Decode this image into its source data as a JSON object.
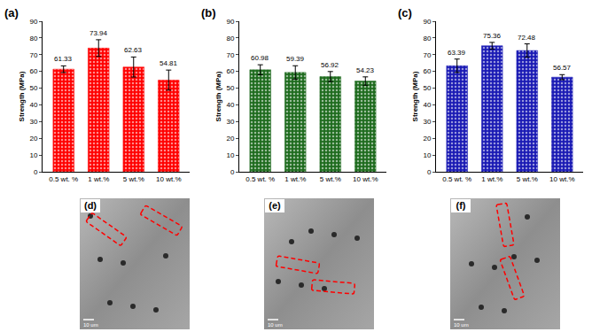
{
  "chart_data": [
    {
      "type": "bar",
      "title": "(a)",
      "ylabel": "Strength (MPa)",
      "categories": [
        "0.5 wt. %",
        "1 wt.%",
        "5 wt.%",
        "10 wt.%"
      ],
      "values": [
        61.33,
        73.94,
        62.63,
        54.81
      ],
      "errors": [
        2,
        5,
        6,
        6
      ],
      "color": "#ff0000",
      "ylim": [
        0,
        90
      ],
      "yticks": [
        0,
        10,
        20,
        30,
        40,
        50,
        60,
        70,
        80,
        90
      ],
      "data_labels": true
    },
    {
      "type": "bar",
      "title": "(b)",
      "ylabel": "Strength (MPa)",
      "categories": [
        "0.5 wt. %",
        "1 wt.%",
        "5 wt.%",
        "10 wt.%"
      ],
      "values": [
        60.98,
        59.39,
        56.92,
        54.23
      ],
      "errors": [
        3,
        4,
        3,
        2.5
      ],
      "color": "#1e6b1e",
      "ylim": [
        0,
        90
      ],
      "yticks": [
        0,
        10,
        20,
        30,
        40,
        50,
        60,
        70,
        80,
        90
      ],
      "data_labels": true
    },
    {
      "type": "bar",
      "title": "(c)",
      "ylabel": "Strength (MPa)",
      "categories": [
        "0.5 wt. %",
        "1 wt.%",
        "5 wt.%",
        "10 wt.%"
      ],
      "values": [
        63.39,
        75.36,
        72.48,
        56.57
      ],
      "errors": [
        4,
        2,
        4,
        1.5
      ],
      "color": "#1a1ab4",
      "ylim": [
        0,
        90
      ],
      "yticks": [
        0,
        10,
        20,
        30,
        40,
        50,
        60,
        70,
        80,
        90
      ],
      "data_labels": true
    }
  ],
  "images": [
    {
      "label": "(d)",
      "scale_bar": "10 um"
    },
    {
      "label": "(e)",
      "scale_bar": "10 um"
    },
    {
      "label": "(f)",
      "scale_bar": "10 um"
    }
  ]
}
